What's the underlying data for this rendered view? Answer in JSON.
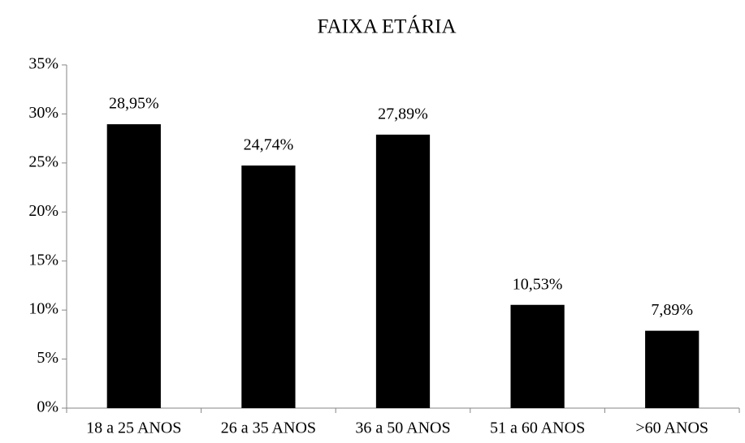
{
  "chart_data": {
    "type": "bar",
    "title": "FAIXA ETÁRIA",
    "categories": [
      "18 a 25 ANOS",
      "26 a 35 ANOS",
      "36 a 50 ANOS",
      "51 a 60 ANOS",
      ">60 ANOS"
    ],
    "values": [
      28.95,
      24.74,
      27.89,
      10.53,
      7.89
    ],
    "value_labels": [
      "28,95%",
      "24,74%",
      "27,89%",
      "10,53%",
      "7,89%"
    ],
    "color": "#000000",
    "ylim": [
      0,
      35
    ],
    "yticks": [
      {
        "value": 0,
        "label": "0%"
      },
      {
        "value": 5,
        "label": "5%"
      },
      {
        "value": 10,
        "label": "10%"
      },
      {
        "value": 15,
        "label": "15%"
      },
      {
        "value": 20,
        "label": "20%"
      },
      {
        "value": 25,
        "label": "25%"
      },
      {
        "value": 30,
        "label": "30%"
      },
      {
        "value": 35,
        "label": "35%"
      }
    ],
    "grid": false
  }
}
